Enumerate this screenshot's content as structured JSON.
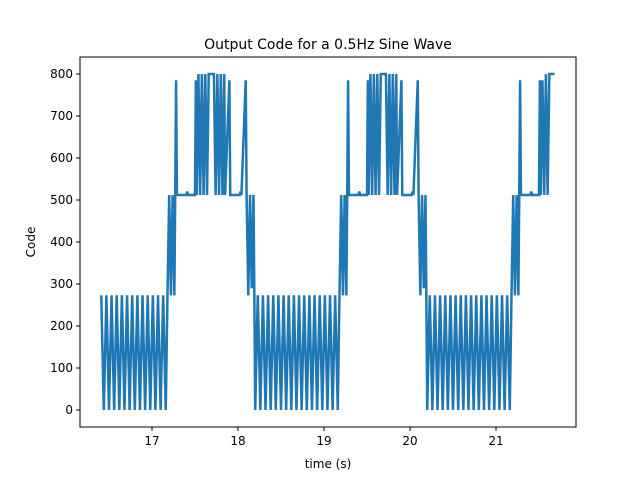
{
  "chart_data": {
    "type": "line",
    "title": "Output Code for a 0.5Hz Sine Wave",
    "x_label": "time (s)",
    "y_label": "Code",
    "x": [
      16.41,
      16.44,
      16.47,
      16.5,
      16.53,
      16.56,
      16.59,
      16.62,
      16.65,
      16.68,
      16.71,
      16.74,
      16.77,
      16.8,
      16.83,
      16.86,
      16.89,
      16.92,
      16.95,
      16.98,
      17.01,
      17.04,
      17.07,
      17.1,
      17.13,
      17.16,
      17.18,
      17.2,
      17.22,
      17.24,
      17.26,
      17.27,
      17.28,
      17.29,
      17.4,
      17.41,
      17.42,
      17.5,
      17.51,
      17.52,
      17.54,
      17.56,
      17.58,
      17.6,
      17.62,
      17.64,
      17.66,
      17.72,
      17.74,
      17.76,
      17.78,
      17.8,
      17.82,
      17.84,
      17.85,
      17.9,
      17.91,
      18.02,
      18.03,
      18.04,
      18.09,
      18.1,
      18.12,
      18.14,
      18.16,
      18.18,
      18.19,
      18.2,
      18.23,
      18.26,
      18.29,
      18.32,
      18.35,
      18.38,
      18.41,
      18.44,
      18.47,
      18.5,
      18.53,
      18.56,
      18.59,
      18.62,
      18.65,
      18.68,
      18.71,
      18.74,
      18.77,
      18.8,
      18.83,
      18.86,
      18.89,
      18.92,
      18.95,
      18.98,
      19.01,
      19.04,
      19.07,
      19.1,
      19.13,
      19.16,
      19.18,
      19.2,
      19.22,
      19.24,
      19.26,
      19.27,
      19.28,
      19.29,
      19.4,
      19.41,
      19.42,
      19.5,
      19.51,
      19.52,
      19.54,
      19.56,
      19.58,
      19.6,
      19.62,
      19.64,
      19.66,
      19.72,
      19.74,
      19.76,
      19.78,
      19.8,
      19.82,
      19.84,
      19.85,
      19.9,
      19.91,
      20.02,
      20.03,
      20.04,
      20.09,
      20.1,
      20.12,
      20.14,
      20.16,
      20.18,
      20.19,
      20.2,
      20.23,
      20.26,
      20.29,
      20.32,
      20.35,
      20.38,
      20.41,
      20.44,
      20.47,
      20.5,
      20.53,
      20.56,
      20.59,
      20.62,
      20.65,
      20.68,
      20.71,
      20.74,
      20.77,
      20.8,
      20.83,
      20.86,
      20.89,
      20.92,
      20.95,
      20.98,
      21.01,
      21.04,
      21.07,
      21.1,
      21.13,
      21.16,
      21.18,
      21.2,
      21.22,
      21.24,
      21.26,
      21.27,
      21.28,
      21.29,
      21.4,
      21.41,
      21.42,
      21.5,
      21.51,
      21.52,
      21.54,
      21.56,
      21.58,
      21.6,
      21.62,
      21.68
    ],
    "series": [
      {
        "color": "#1f77b4",
        "values": [
          273,
          0,
          273,
          0,
          273,
          0,
          273,
          0,
          273,
          0,
          273,
          0,
          273,
          0,
          273,
          0,
          273,
          0,
          273,
          0,
          273,
          0,
          273,
          0,
          273,
          0,
          273,
          512,
          273,
          512,
          273,
          512,
          785,
          512,
          512,
          520,
          512,
          512,
          785,
          512,
          800,
          512,
          800,
          512,
          800,
          512,
          800,
          800,
          512,
          800,
          512,
          800,
          512,
          800,
          512,
          785,
          512,
          512,
          520,
          512,
          785,
          512,
          273,
          512,
          290,
          512,
          273,
          0,
          273,
          0,
          273,
          0,
          273,
          0,
          273,
          0,
          273,
          0,
          273,
          0,
          273,
          0,
          273,
          0,
          273,
          0,
          273,
          0,
          273,
          0,
          273,
          0,
          273,
          0,
          273,
          0,
          273,
          0,
          273,
          0,
          273,
          512,
          273,
          512,
          273,
          512,
          785,
          512,
          512,
          520,
          512,
          512,
          785,
          512,
          800,
          512,
          800,
          512,
          800,
          512,
          800,
          800,
          512,
          800,
          512,
          800,
          512,
          800,
          512,
          785,
          512,
          512,
          520,
          512,
          785,
          512,
          273,
          512,
          290,
          512,
          273,
          0,
          273,
          0,
          273,
          0,
          273,
          0,
          273,
          0,
          273,
          0,
          273,
          0,
          273,
          0,
          273,
          0,
          273,
          0,
          273,
          0,
          273,
          0,
          273,
          0,
          273,
          0,
          273,
          0,
          273,
          0,
          273,
          0,
          273,
          512,
          273,
          512,
          273,
          512,
          785,
          512,
          512,
          520,
          512,
          512,
          785,
          512,
          785,
          512,
          800,
          512,
          800,
          800
        ]
      }
    ],
    "xlim": [
      16.163,
      21.93
    ],
    "ylim": [
      -40.5,
      840.5
    ],
    "xticks": [
      17,
      18,
      19,
      20,
      21
    ],
    "yticks": [
      0,
      100,
      200,
      300,
      400,
      500,
      600,
      700,
      800
    ]
  }
}
